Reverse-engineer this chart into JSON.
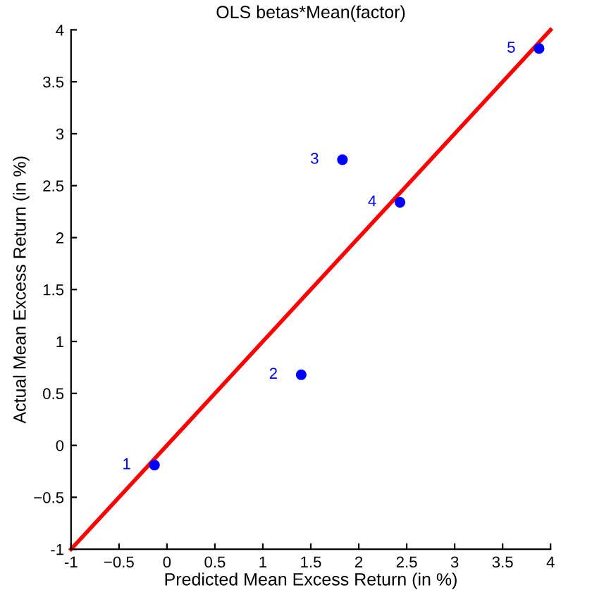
{
  "chart_data": {
    "type": "scatter",
    "title": "OLS betas*Mean(factor)",
    "xlabel": "Predicted Mean Excess Return (in %)",
    "ylabel": "Actual Mean Excess Return (in %)",
    "xlim": [
      -1,
      4
    ],
    "ylim": [
      -1,
      4
    ],
    "xticks": [
      -1,
      {
        "value": -0.5,
        "label": "−0.5"
      },
      0,
      0.5,
      1,
      1.5,
      2,
      2.5,
      3,
      3.5,
      4
    ],
    "yticks": [
      -1,
      {
        "value": -0.5,
        "label": "−0.5"
      },
      0,
      0.5,
      1,
      1.5,
      2,
      2.5,
      3,
      3.5,
      4
    ],
    "grid": false,
    "legend": false,
    "series": [
      {
        "color": "#0000ff",
        "marker": "circle",
        "x": [
          -0.13,
          1.4,
          1.83,
          2.43,
          3.88
        ],
        "values": [
          -0.19,
          0.68,
          2.75,
          2.34,
          3.82
        ]
      },
      {
        "type": "line",
        "color": "#ff0000",
        "line_style": "solid",
        "marker": "none",
        "x": [
          -1,
          4
        ],
        "values": [
          -1,
          4
        ]
      }
    ],
    "annotations": [
      {
        "text": "1",
        "x": -0.13,
        "y": -0.19
      },
      {
        "text": "2",
        "x": 1.4,
        "y": 0.68
      },
      {
        "text": "3",
        "x": 1.83,
        "y": 2.75
      },
      {
        "text": "4",
        "x": 2.43,
        "y": 2.34
      },
      {
        "text": "5",
        "x": 3.88,
        "y": 3.82
      }
    ]
  }
}
